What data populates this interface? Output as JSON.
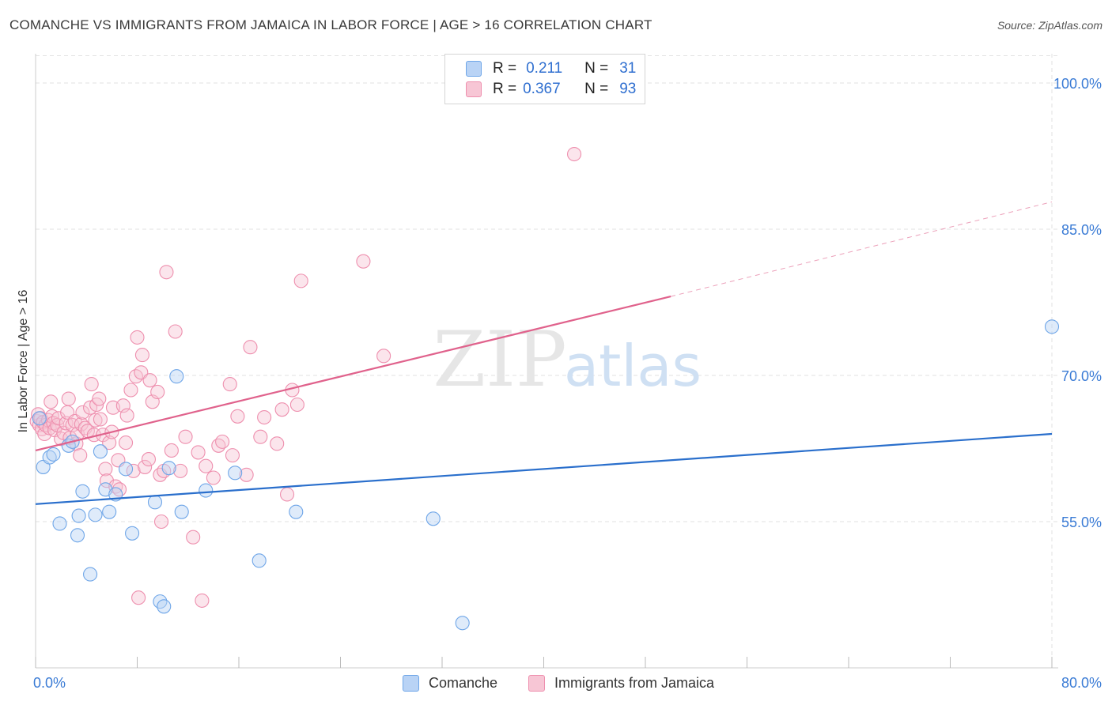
{
  "colors": {
    "comanche": "#6fa6e8",
    "comanche_fill": "#b9d3f5",
    "comanche_line": "#2a6fcc",
    "jamaica": "#ee8fae",
    "jamaica_fill": "#f7c6d5",
    "jamaica_line": "#e0628c",
    "axis_label": "#3a7bd5",
    "grid": "#e2e2e2"
  },
  "header": {
    "title": "COMANCHE VS IMMIGRANTS FROM JAMAICA IN LABOR FORCE | AGE > 16 CORRELATION CHART",
    "source": "Source: ZipAtlas.com"
  },
  "legend": {
    "rows": [
      {
        "r_label": "R =",
        "r_value": "0.211",
        "n_label": "N =",
        "n_value": "31"
      },
      {
        "r_label": "R =",
        "r_value": "0.367",
        "n_label": "N =",
        "n_value": "93"
      }
    ]
  },
  "watermark": {
    "zip": "ZIP",
    "atlas": "atlas"
  },
  "bottom_legend": {
    "comanche": "Comanche",
    "jamaica": "Immigrants from Jamaica"
  },
  "chart_data": {
    "type": "scatter",
    "title": "COMANCHE VS IMMIGRANTS FROM JAMAICA IN LABOR FORCE | AGE > 16 CORRELATION CHART",
    "xlabel": "",
    "ylabel": "In Labor Force | Age > 16",
    "xlim": [
      0,
      80
    ],
    "ylim": [
      40,
      103
    ],
    "x_tick_labels": [
      "0.0%",
      "80.0%"
    ],
    "y_ticks": [
      55,
      70,
      85,
      100
    ],
    "y_tick_labels": [
      "55.0%",
      "70.0%",
      "85.0%",
      "100.0%"
    ],
    "series": [
      {
        "name": "Comanche",
        "r": 0.211,
        "n": 31,
        "trend": {
          "x": [
            0,
            80
          ],
          "y": [
            56.8,
            64.0
          ]
        },
        "points": [
          [
            0.3,
            65.6
          ],
          [
            0.6,
            60.6
          ],
          [
            1.1,
            61.6
          ],
          [
            1.4,
            61.9
          ],
          [
            1.9,
            54.8
          ],
          [
            2.6,
            62.8
          ],
          [
            2.9,
            63.2
          ],
          [
            3.3,
            53.6
          ],
          [
            3.4,
            55.6
          ],
          [
            3.7,
            58.1
          ],
          [
            4.3,
            49.6
          ],
          [
            4.7,
            55.7
          ],
          [
            5.1,
            62.2
          ],
          [
            5.5,
            58.3
          ],
          [
            5.8,
            56.0
          ],
          [
            6.3,
            57.8
          ],
          [
            7.1,
            60.4
          ],
          [
            7.6,
            53.8
          ],
          [
            9.4,
            57.0
          ],
          [
            9.8,
            46.8
          ],
          [
            10.1,
            46.3
          ],
          [
            10.5,
            60.5
          ],
          [
            11.1,
            69.9
          ],
          [
            11.5,
            56.0
          ],
          [
            13.4,
            58.2
          ],
          [
            15.7,
            60.0
          ],
          [
            17.6,
            51.0
          ],
          [
            20.5,
            56.0
          ],
          [
            31.3,
            55.3
          ],
          [
            33.6,
            44.6
          ],
          [
            80.0,
            75.0
          ]
        ]
      },
      {
        "name": "Immigrants from Jamaica",
        "r": 0.367,
        "n": 93,
        "trend": {
          "x": [
            0,
            50
          ],
          "y": [
            62.3,
            78.1
          ]
        },
        "trend_dashed": {
          "x": [
            50,
            80
          ],
          "y": [
            78.1,
            87.8
          ]
        },
        "points": [
          [
            0.1,
            65.3
          ],
          [
            0.2,
            66.0
          ],
          [
            0.3,
            64.9
          ],
          [
            0.4,
            65.6
          ],
          [
            0.5,
            64.5
          ],
          [
            0.6,
            65.2
          ],
          [
            0.7,
            64.0
          ],
          [
            0.8,
            64.9
          ],
          [
            1.0,
            65.4
          ],
          [
            1.1,
            64.6
          ],
          [
            1.2,
            67.3
          ],
          [
            1.3,
            65.8
          ],
          [
            1.4,
            65.1
          ],
          [
            1.5,
            64.4
          ],
          [
            1.7,
            64.9
          ],
          [
            1.8,
            65.6
          ],
          [
            2.0,
            63.5
          ],
          [
            2.2,
            64.1
          ],
          [
            2.4,
            65.1
          ],
          [
            2.5,
            66.2
          ],
          [
            2.6,
            67.6
          ],
          [
            2.7,
            63.6
          ],
          [
            2.9,
            64.9
          ],
          [
            3.1,
            65.3
          ],
          [
            3.2,
            63.0
          ],
          [
            3.3,
            64.0
          ],
          [
            3.5,
            61.8
          ],
          [
            3.6,
            65.0
          ],
          [
            3.7,
            66.2
          ],
          [
            3.9,
            64.6
          ],
          [
            4.1,
            64.3
          ],
          [
            4.3,
            66.7
          ],
          [
            4.4,
            69.1
          ],
          [
            4.6,
            63.9
          ],
          [
            4.7,
            65.4
          ],
          [
            4.8,
            67.0
          ],
          [
            5.0,
            67.6
          ],
          [
            5.1,
            65.5
          ],
          [
            5.3,
            63.9
          ],
          [
            5.5,
            60.4
          ],
          [
            5.6,
            59.2
          ],
          [
            5.8,
            63.1
          ],
          [
            6.0,
            64.2
          ],
          [
            6.1,
            66.7
          ],
          [
            6.3,
            58.6
          ],
          [
            6.5,
            61.3
          ],
          [
            6.6,
            58.3
          ],
          [
            6.9,
            66.9
          ],
          [
            7.1,
            63.1
          ],
          [
            7.2,
            65.9
          ],
          [
            7.5,
            68.5
          ],
          [
            7.7,
            60.2
          ],
          [
            7.9,
            69.9
          ],
          [
            8.0,
            73.9
          ],
          [
            8.1,
            47.2
          ],
          [
            8.3,
            70.3
          ],
          [
            8.4,
            72.1
          ],
          [
            8.6,
            60.6
          ],
          [
            8.9,
            61.4
          ],
          [
            9.0,
            69.5
          ],
          [
            9.2,
            67.3
          ],
          [
            9.6,
            68.3
          ],
          [
            9.8,
            59.8
          ],
          [
            9.9,
            55.0
          ],
          [
            10.1,
            60.2
          ],
          [
            10.3,
            80.6
          ],
          [
            10.7,
            62.3
          ],
          [
            11.0,
            74.5
          ],
          [
            11.4,
            60.2
          ],
          [
            11.8,
            63.7
          ],
          [
            12.4,
            53.4
          ],
          [
            12.8,
            62.1
          ],
          [
            13.1,
            46.9
          ],
          [
            13.4,
            60.7
          ],
          [
            14.0,
            59.5
          ],
          [
            14.4,
            62.8
          ],
          [
            14.7,
            63.2
          ],
          [
            15.3,
            69.1
          ],
          [
            15.5,
            61.8
          ],
          [
            15.9,
            65.8
          ],
          [
            16.6,
            59.8
          ],
          [
            16.9,
            72.9
          ],
          [
            17.7,
            63.7
          ],
          [
            18.0,
            65.7
          ],
          [
            19.0,
            63.0
          ],
          [
            19.4,
            66.5
          ],
          [
            19.8,
            57.8
          ],
          [
            20.2,
            68.5
          ],
          [
            20.6,
            67.0
          ],
          [
            20.9,
            79.7
          ],
          [
            25.8,
            81.7
          ],
          [
            27.4,
            72.0
          ],
          [
            42.4,
            92.7
          ]
        ]
      }
    ]
  }
}
